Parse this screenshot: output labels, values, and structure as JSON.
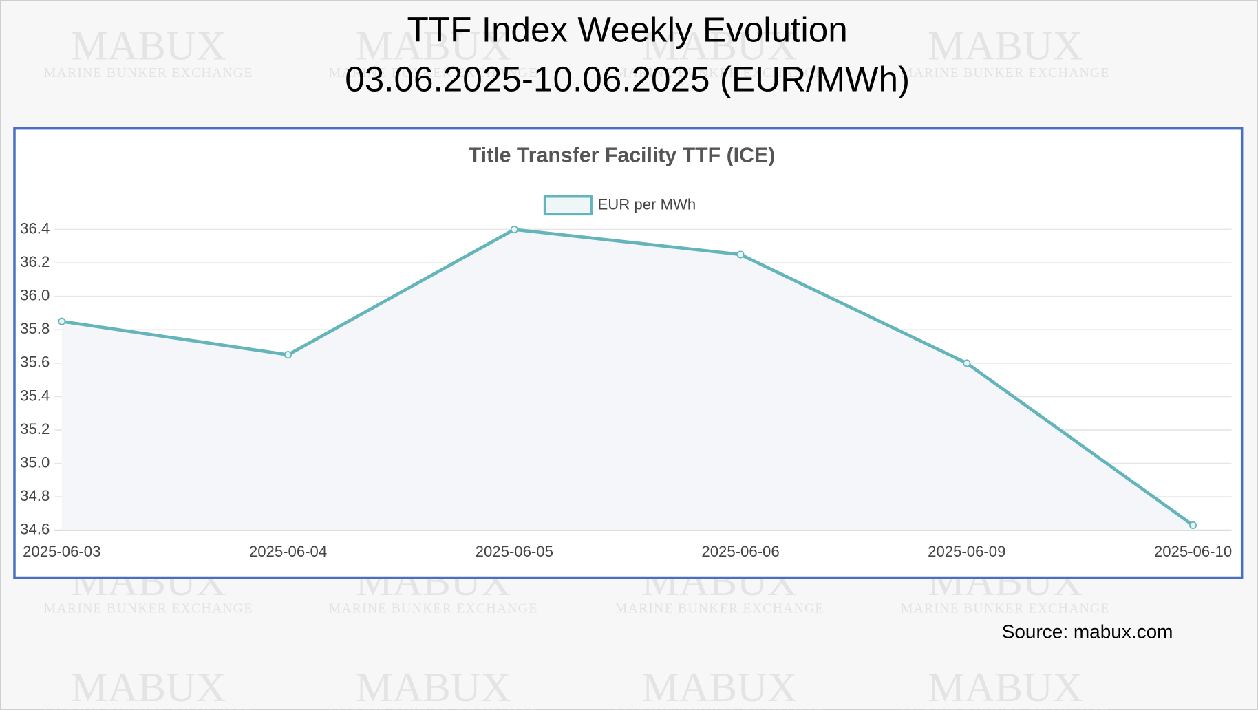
{
  "watermark": {
    "name": "MABUX",
    "tagline": "MARINE BUNKER EXCHANGE"
  },
  "title": "TTF Index Weekly Evolution",
  "subtitle": "03.06.2025-10.06.2025 (EUR/MWh)",
  "source": "Source: mabux.com",
  "chart_data": {
    "type": "line",
    "title": "Title Transfer Facility TTF (ICE)",
    "categories": [
      "2025-06-03",
      "2025-06-04",
      "2025-06-05",
      "2025-06-06",
      "2025-06-09",
      "2025-06-10"
    ],
    "series": [
      {
        "name": "EUR per MWh",
        "color": "#64b5ba",
        "values": [
          35.85,
          35.65,
          36.4,
          36.25,
          35.6,
          34.63
        ]
      }
    ],
    "ylim": [
      34.6,
      36.4
    ],
    "yticks": [
      34.6,
      34.8,
      {
        "value": 35,
        "label": "35.0"
      },
      35.2,
      35.4,
      35.6,
      35.8,
      {
        "value": 36,
        "label": "36.0"
      },
      36.2,
      36.4
    ],
    "grid": true,
    "legend": "top"
  }
}
